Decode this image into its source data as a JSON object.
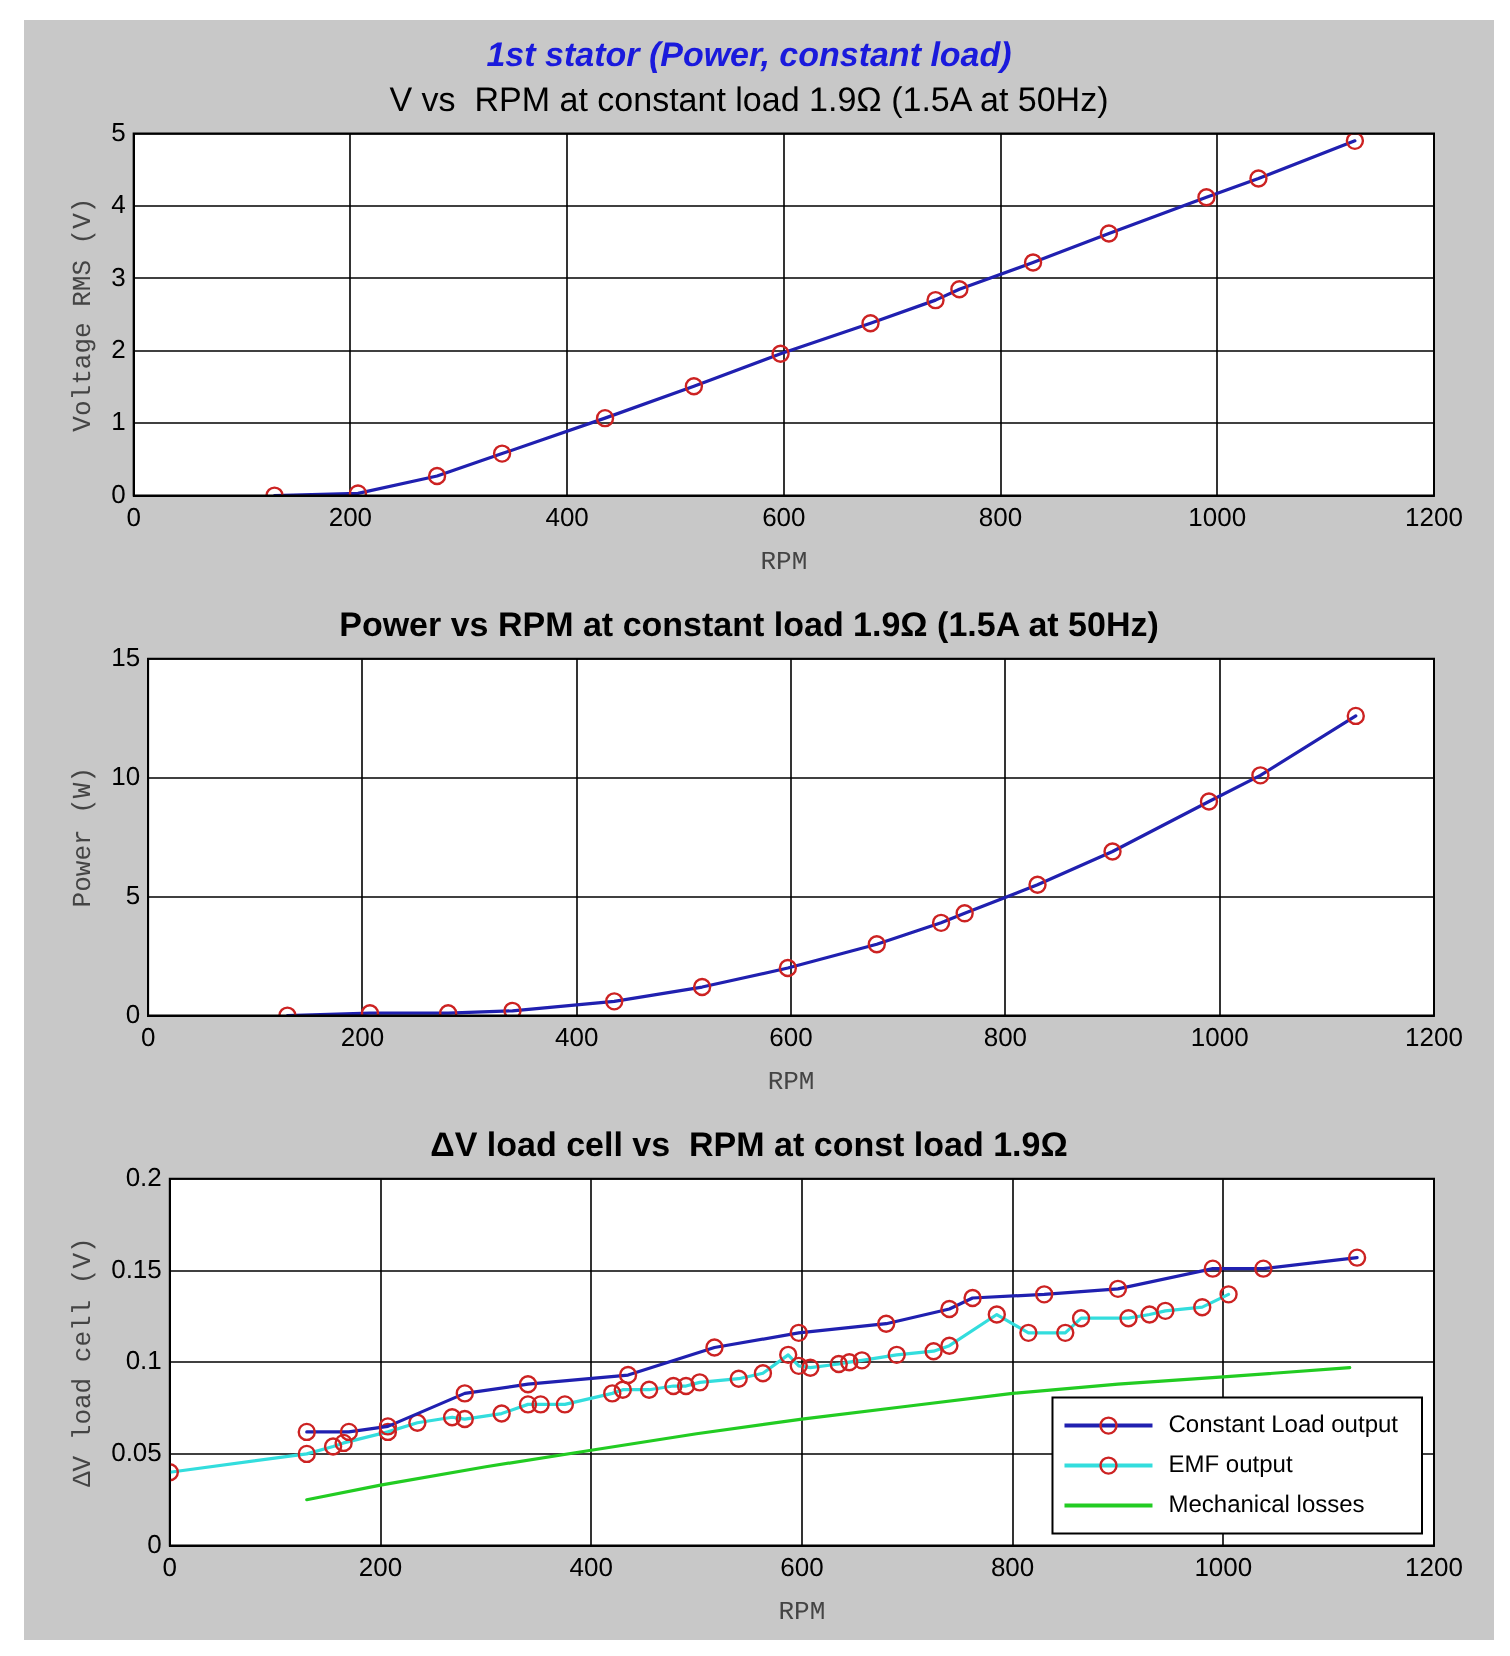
{
  "chart_data": [
    {
      "type": "line",
      "title": "1st stator (Power, constant load)",
      "subtitle": "V vs  RPM at constant load 1.9Ω (1.5A at 50Hz)",
      "xlabel": "RPM",
      "ylabel": "Voltage RMS (V)",
      "xlim": [
        0,
        1200
      ],
      "xticks": [
        0,
        200,
        400,
        600,
        800,
        1000,
        1200
      ],
      "ylim": [
        0,
        5
      ],
      "yticks": [
        0,
        1,
        2,
        3,
        4,
        5
      ],
      "grid": true,
      "legend": false,
      "marker": "circle",
      "series": [
        {
          "color": "#2020b0",
          "x": [
            130,
            207,
            280,
            340,
            435,
            517,
            597,
            680,
            740,
            762,
            830,
            900,
            990,
            1038,
            1127
          ],
          "values": [
            0,
            0.03,
            0.27,
            0.58,
            1.07,
            1.51,
            1.96,
            2.38,
            2.7,
            2.85,
            3.22,
            3.62,
            4.12,
            4.38,
            4.9
          ]
        }
      ]
    },
    {
      "type": "line",
      "title": "Power vs RPM at constant load 1.9Ω (1.5A at 50Hz)",
      "xlabel": "RPM",
      "ylabel": "Power (W)",
      "xlim": [
        0,
        1200
      ],
      "xticks": [
        0,
        200,
        400,
        600,
        800,
        1000,
        1200
      ],
      "ylim": [
        0,
        15
      ],
      "yticks": [
        0,
        5,
        10,
        15
      ],
      "grid": true,
      "legend": false,
      "marker": "circle",
      "series": [
        {
          "color": "#2020b0",
          "x": [
            130,
            207,
            280,
            340,
            435,
            517,
            597,
            680,
            740,
            762,
            830,
            900,
            990,
            1038,
            1127
          ],
          "values": [
            0,
            0.1,
            0.1,
            0.2,
            0.6,
            1.2,
            2.0,
            3.0,
            3.9,
            4.3,
            5.5,
            6.9,
            9.0,
            10.1,
            12.6
          ]
        }
      ]
    },
    {
      "type": "line",
      "title": "ΔV load cell vs  RPM at const load 1.9Ω",
      "xlabel": "RPM",
      "ylabel": "ΔV load cell (V)",
      "xlim": [
        0,
        1200
      ],
      "xticks": [
        0,
        200,
        400,
        600,
        800,
        1000,
        1200
      ],
      "ylim": [
        0,
        0.2
      ],
      "yticks": [
        0,
        0.05,
        0.1,
        0.15,
        0.2
      ],
      "grid": true,
      "legend": "bottom right",
      "series": [
        {
          "name": "Constant Load output",
          "color": "#2020b0",
          "marker": "circle",
          "x": [
            130,
            170,
            207,
            280,
            340,
            435,
            517,
            597,
            680,
            740,
            762,
            830,
            900,
            990,
            1038,
            1127
          ],
          "values": [
            0.062,
            0.062,
            0.065,
            0.083,
            0.088,
            0.093,
            0.108,
            0.116,
            0.121,
            0.129,
            0.135,
            0.137,
            0.14,
            0.151,
            0.151,
            0.157
          ]
        },
        {
          "name": "EMF output",
          "color": "#33dddd",
          "marker": "circle",
          "x": [
            0,
            130,
            155,
            165,
            207,
            235,
            268,
            280,
            315,
            340,
            352,
            375,
            420,
            430,
            455,
            478,
            490,
            503,
            540,
            563,
            587,
            597,
            608,
            635,
            645,
            657,
            690,
            725,
            740,
            785,
            815,
            850,
            865,
            910,
            930,
            945,
            980,
            1005
          ],
          "values": [
            0.04,
            0.05,
            0.054,
            0.056,
            0.062,
            0.067,
            0.07,
            0.069,
            0.072,
            0.077,
            0.077,
            0.077,
            0.083,
            0.085,
            0.085,
            0.087,
            0.087,
            0.089,
            0.091,
            0.094,
            0.104,
            0.098,
            0.097,
            0.099,
            0.1,
            0.101,
            0.104,
            0.106,
            0.109,
            0.126,
            0.116,
            0.116,
            0.124,
            0.124,
            0.126,
            0.128,
            0.13,
            0.137
          ]
        },
        {
          "name": "Mechanical losses",
          "color": "#22cc22",
          "marker": "none",
          "x": [
            130,
            200,
            300,
            400,
            500,
            600,
            700,
            800,
            900,
            1000,
            1120
          ],
          "values": [
            0.025,
            0.033,
            0.043,
            0.052,
            0.061,
            0.069,
            0.076,
            0.083,
            0.088,
            0.092,
            0.097
          ]
        }
      ]
    }
  ]
}
